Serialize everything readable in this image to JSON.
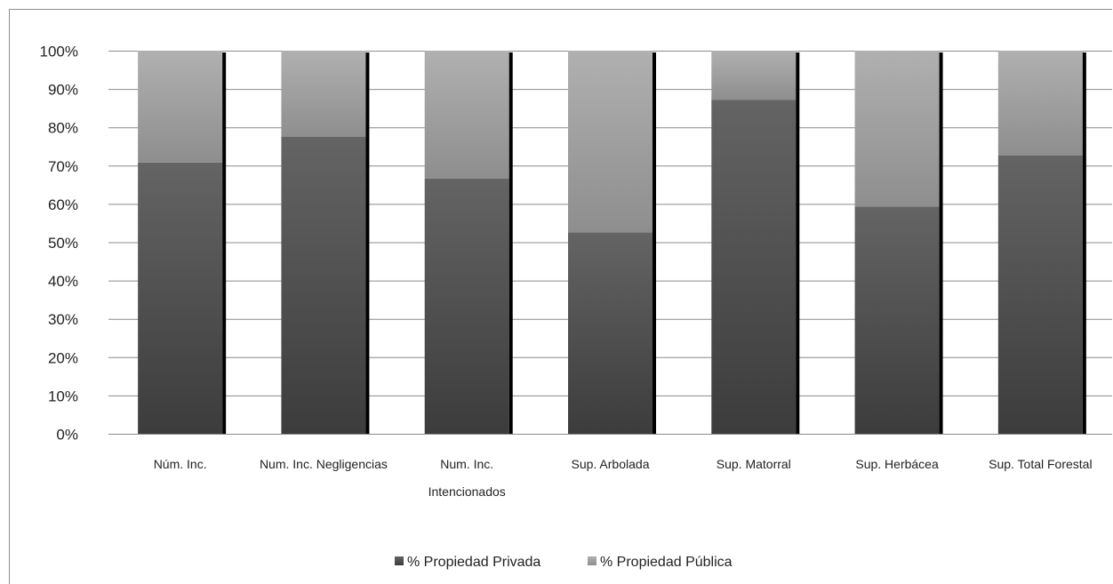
{
  "chart_data": {
    "type": "bar",
    "stacked": "percent",
    "categories": [
      [
        "Núm. Inc."
      ],
      [
        "Num. Inc. Negligencias"
      ],
      [
        "Num. Inc.",
        "Intencionados"
      ],
      [
        "Sup. Arbolada"
      ],
      [
        "Sup. Matorral"
      ],
      [
        "Sup. Herbácea"
      ],
      [
        "Sup. Total Forestal"
      ]
    ],
    "series": [
      {
        "name": "% Propiedad Privada",
        "values": [
          70.8,
          77.5,
          66.6,
          52.6,
          87.2,
          59.3,
          72.7
        ]
      },
      {
        "name": "% Propiedad Pública",
        "values": [
          29.2,
          22.5,
          33.4,
          47.4,
          12.8,
          40.7,
          27.3
        ]
      }
    ],
    "ylim": [
      0,
      100
    ],
    "yticks": [
      "0%",
      "10%",
      "20%",
      "30%",
      "40%",
      "50%",
      "60%",
      "70%",
      "80%",
      "90%",
      "100%"
    ],
    "grid": true,
    "legend_position": "bottom",
    "colors": {
      "privada": "#555555",
      "publica": "#a8a8a8",
      "shadow": "#000000",
      "grid": "#8c8c8c"
    },
    "title": "",
    "xlabel": "",
    "ylabel": ""
  }
}
